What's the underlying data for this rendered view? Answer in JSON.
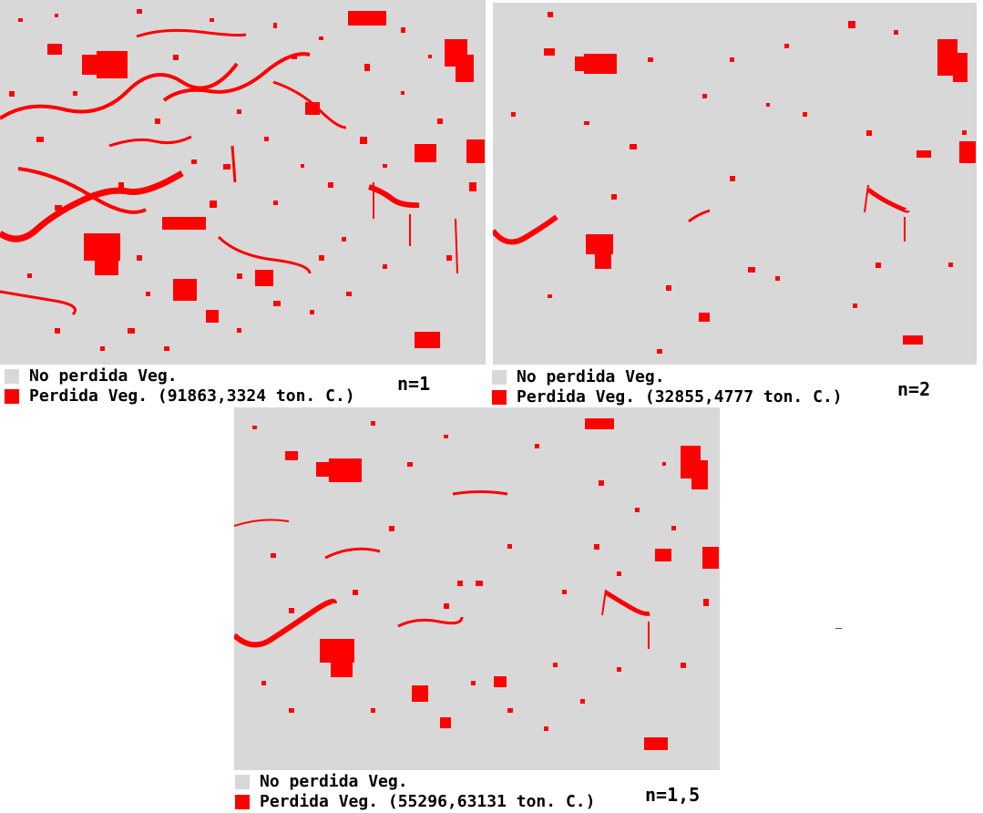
{
  "colors": {
    "no_loss": "#d8d8d8",
    "loss": "#ff0000",
    "background": "#ffffff"
  },
  "panels": [
    {
      "id": "n1",
      "n_label": "n=1",
      "legend": {
        "no_loss_label": "No perdida Veg.",
        "loss_label": "Perdida Veg. (91863,3324 ton. C.)"
      }
    },
    {
      "id": "n2",
      "n_label": "n=2",
      "legend": {
        "no_loss_label": "No perdida Veg.",
        "loss_label": "Perdida Veg. (32855,4777 ton. C.)"
      }
    },
    {
      "id": "n15",
      "n_label": "n=1,5",
      "legend": {
        "no_loss_label": "No perdida Veg.",
        "loss_label": "Perdida Veg. (55296,63131 ton. C.)"
      }
    }
  ]
}
